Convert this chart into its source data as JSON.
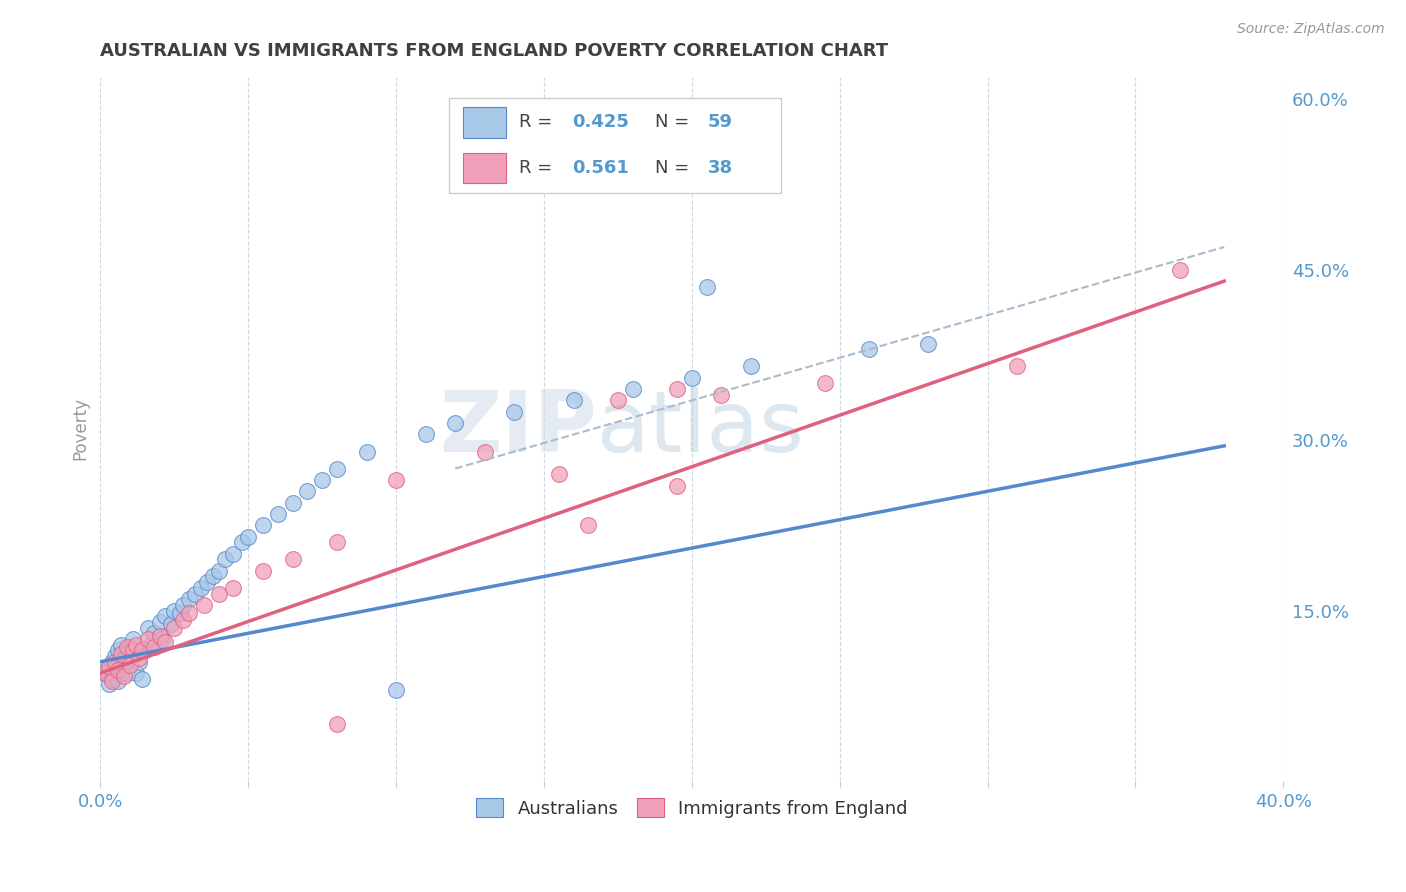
{
  "title": "AUSTRALIAN VS IMMIGRANTS FROM ENGLAND POVERTY CORRELATION CHART",
  "source": "Source: ZipAtlas.com",
  "ylabel": "Poverty",
  "xlim": [
    0.0,
    0.4
  ],
  "ylim": [
    0.0,
    0.62
  ],
  "x_tick_positions": [
    0.0,
    0.05,
    0.1,
    0.15,
    0.2,
    0.25,
    0.3,
    0.35,
    0.4
  ],
  "x_tick_labels": [
    "0.0%",
    "",
    "",
    "",
    "",
    "",
    "",
    "",
    "40.0%"
  ],
  "y_ticks_right": [
    0.15,
    0.3,
    0.45,
    0.6
  ],
  "y_tick_labels_right": [
    "15.0%",
    "30.0%",
    "45.0%",
    "60.0%"
  ],
  "watermark": "ZIPatlas",
  "color_australian": "#a8c8e8",
  "color_england": "#f0a0b8",
  "color_line_australian": "#5588cc",
  "color_line_england": "#e06080",
  "color_line_dashed": "#aabbcc",
  "background_color": "#ffffff",
  "grid_color": "#d0d8e8",
  "title_color": "#404040",
  "axis_label_color": "#5599cc",
  "aus_x": [
    0.001,
    0.002,
    0.003,
    0.004,
    0.004,
    0.005,
    0.005,
    0.006,
    0.006,
    0.007,
    0.007,
    0.008,
    0.008,
    0.009,
    0.009,
    0.01,
    0.011,
    0.012,
    0.013,
    0.014,
    0.015,
    0.016,
    0.017,
    0.018,
    0.02,
    0.021,
    0.022,
    0.024,
    0.025,
    0.027,
    0.028,
    0.03,
    0.032,
    0.034,
    0.036,
    0.038,
    0.04,
    0.042,
    0.045,
    0.048,
    0.05,
    0.055,
    0.06,
    0.065,
    0.07,
    0.075,
    0.08,
    0.09,
    0.1,
    0.11,
    0.12,
    0.14,
    0.16,
    0.18,
    0.2,
    0.22,
    0.26,
    0.28,
    0.205
  ],
  "aus_y": [
    0.095,
    0.098,
    0.085,
    0.09,
    0.105,
    0.092,
    0.11,
    0.088,
    0.115,
    0.095,
    0.12,
    0.1,
    0.108,
    0.112,
    0.095,
    0.118,
    0.125,
    0.095,
    0.105,
    0.09,
    0.115,
    0.135,
    0.12,
    0.13,
    0.14,
    0.125,
    0.145,
    0.138,
    0.15,
    0.148,
    0.155,
    0.16,
    0.165,
    0.17,
    0.175,
    0.18,
    0.185,
    0.195,
    0.2,
    0.21,
    0.215,
    0.225,
    0.235,
    0.245,
    0.255,
    0.265,
    0.275,
    0.29,
    0.08,
    0.305,
    0.315,
    0.325,
    0.335,
    0.345,
    0.355,
    0.365,
    0.38,
    0.385,
    0.435
  ],
  "eng_x": [
    0.002,
    0.003,
    0.004,
    0.005,
    0.006,
    0.007,
    0.008,
    0.009,
    0.01,
    0.011,
    0.012,
    0.013,
    0.014,
    0.016,
    0.018,
    0.02,
    0.022,
    0.025,
    0.028,
    0.03,
    0.035,
    0.04,
    0.045,
    0.055,
    0.065,
    0.08,
    0.1,
    0.13,
    0.155,
    0.175,
    0.195,
    0.21,
    0.245,
    0.31,
    0.365,
    0.195,
    0.165,
    0.08
  ],
  "eng_y": [
    0.095,
    0.1,
    0.088,
    0.105,
    0.098,
    0.112,
    0.092,
    0.118,
    0.102,
    0.115,
    0.12,
    0.108,
    0.115,
    0.125,
    0.118,
    0.128,
    0.122,
    0.135,
    0.142,
    0.148,
    0.155,
    0.165,
    0.17,
    0.185,
    0.195,
    0.21,
    0.265,
    0.29,
    0.27,
    0.335,
    0.345,
    0.34,
    0.35,
    0.365,
    0.45,
    0.26,
    0.225,
    0.05
  ],
  "blue_line_x0": 0.0,
  "blue_line_y0": 0.105,
  "blue_line_x1": 0.38,
  "blue_line_y1": 0.295,
  "pink_line_x0": 0.0,
  "pink_line_y0": 0.095,
  "pink_line_x1": 0.38,
  "pink_line_y1": 0.44,
  "dash_line_x0": 0.12,
  "dash_line_y0": 0.275,
  "dash_line_x1": 0.38,
  "dash_line_y1": 0.47
}
